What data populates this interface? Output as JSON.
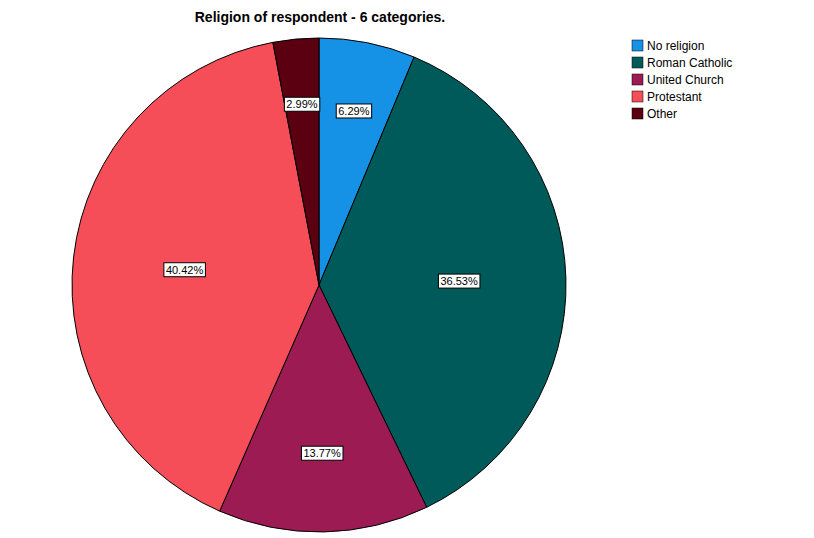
{
  "chart_data": {
    "type": "pie",
    "title": "Religion of respondent - 6 categories.",
    "categories": [
      "No religion",
      "Roman Catholic",
      "United Church",
      "Protestant",
      "Other"
    ],
    "values": [
      6.29,
      36.53,
      13.77,
      40.42,
      2.99
    ],
    "value_labels": [
      "6.29%",
      "36.53%",
      "13.77%",
      "40.42%",
      "2.99%"
    ],
    "colors": [
      "#1591e6",
      "#005a5a",
      "#9c1b52",
      "#f54e58",
      "#5a0010"
    ],
    "data_labels": true,
    "legend": "top-right"
  }
}
